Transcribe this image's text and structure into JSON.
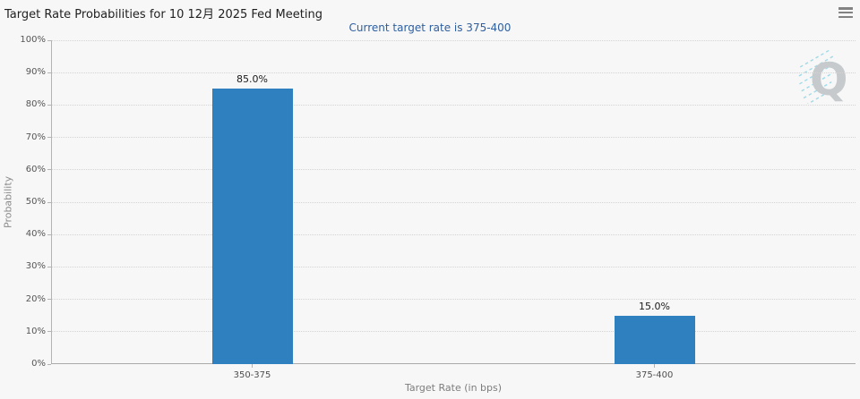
{
  "page": {
    "background": "#f7f7f7"
  },
  "header": {
    "title": "Target Rate Probabilities for 10 12月 2025 Fed Meeting",
    "menu_icon": "hamburger-icon"
  },
  "subtitle": {
    "text": "Current target rate is 375-400"
  },
  "watermark": {
    "letter": "Q"
  },
  "chart_data": {
    "type": "bar",
    "title": "Target Rate Probabilities for 10 12月 2025 Fed Meeting",
    "subtitle": "Current target rate is 375-400",
    "categories": [
      "350-375",
      "375-400"
    ],
    "values": [
      85.0,
      15.0
    ],
    "value_labels": [
      "85.0%",
      "15.0%"
    ],
    "xlabel": "Target Rate (in bps)",
    "ylabel": "Probability",
    "ylim": [
      0,
      100
    ],
    "ytick_step": 10,
    "ytick_labels": [
      "0%",
      "10%",
      "20%",
      "30%",
      "40%",
      "50%",
      "60%",
      "70%",
      "80%",
      "90%",
      "100%"
    ],
    "grid": "horizontal-dotted",
    "legend": "none",
    "bar_color": "#2e80be"
  },
  "colors": {
    "background": "#f7f7f7",
    "bar": "#2e80be",
    "title_text": "#1f1f1f",
    "subtitle_text": "#2e5f9f",
    "axis_line": "#b3b3b3",
    "gridline": "#d4d4d4",
    "tick_label": "#555555",
    "axis_title": "#7d7d7d",
    "watermark_q": "#c6cacd",
    "watermark_dash": "#8fd6e6",
    "menu_icon": "#828282"
  }
}
